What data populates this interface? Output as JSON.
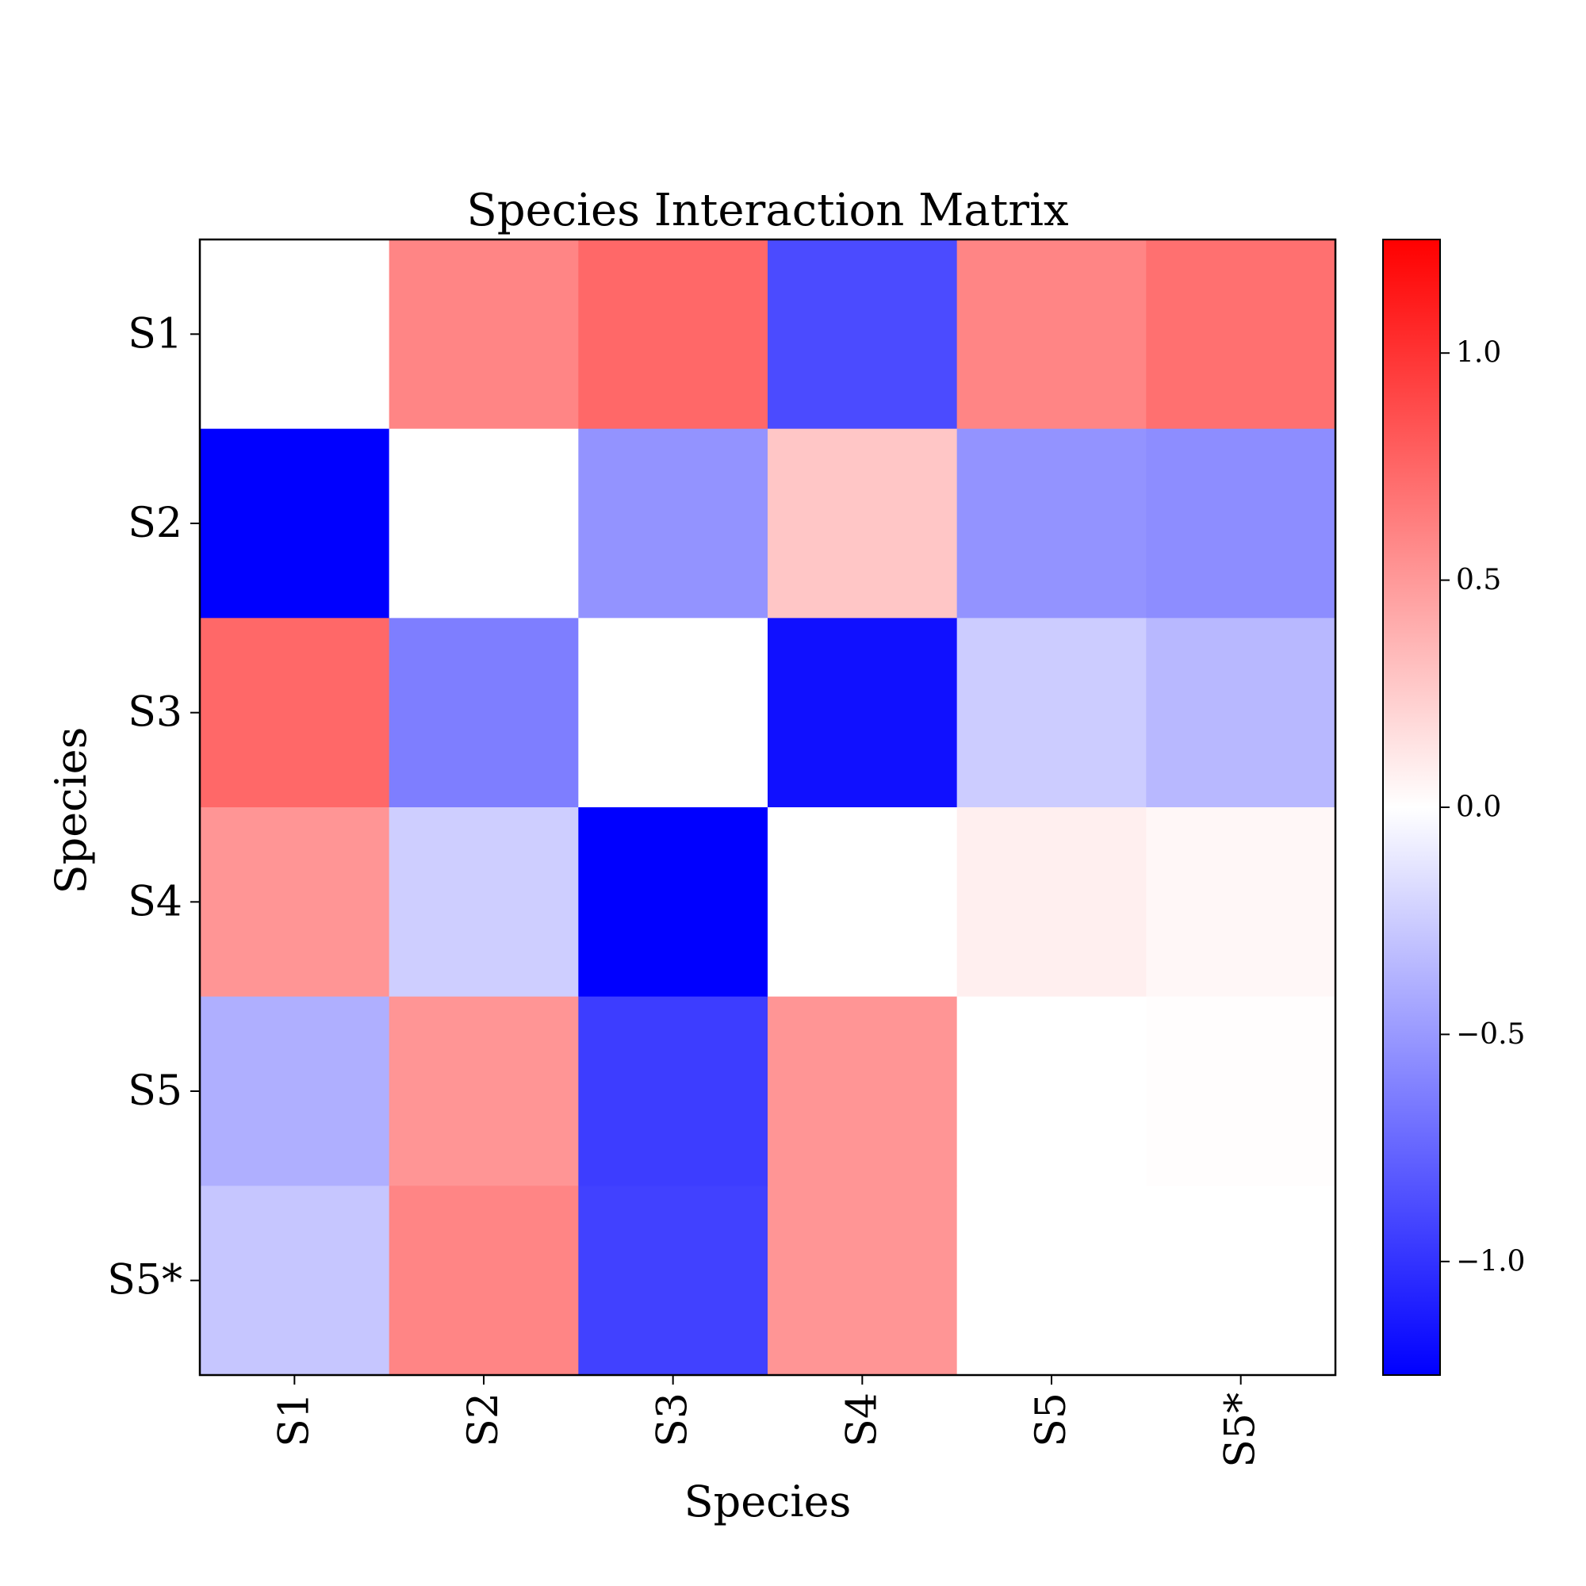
{
  "chart_data": {
    "type": "heatmap",
    "title": "Species Interaction Matrix",
    "xlabel": "Species",
    "ylabel": "Species",
    "x_categories": [
      "S1",
      "S2",
      "S3",
      "S4",
      "S5",
      "S5*"
    ],
    "y_categories": [
      "S1",
      "S2",
      "S3",
      "S4",
      "S5",
      "S5*"
    ],
    "values": [
      [
        0.0,
        0.6,
        0.74,
        -0.88,
        0.6,
        0.7
      ],
      [
        -1.25,
        0.0,
        -0.53,
        0.28,
        -0.53,
        -0.56
      ],
      [
        0.74,
        -0.63,
        0.0,
        -1.17,
        -0.25,
        -0.35
      ],
      [
        0.52,
        -0.24,
        -1.25,
        0.0,
        0.08,
        0.04
      ],
      [
        -0.39,
        0.52,
        -0.95,
        0.52,
        0.0,
        0.01
      ],
      [
        -0.28,
        0.6,
        -0.93,
        0.52,
        0.0,
        0.0
      ]
    ],
    "colormap": {
      "name": "bwr",
      "low_color": "#0000ff",
      "mid_color": "#ffffff",
      "high_color": "#ff0000"
    },
    "vmin": -1.25,
    "vmax": 1.25,
    "colorbar_ticks": [
      1.0,
      0.5,
      0.0,
      -0.5,
      -1.0
    ],
    "colorbar_tick_labels": [
      "1.0",
      "0.5",
      "0.0",
      "−0.5",
      "−1.0"
    ],
    "colorbar_position": "right",
    "grid": false
  }
}
